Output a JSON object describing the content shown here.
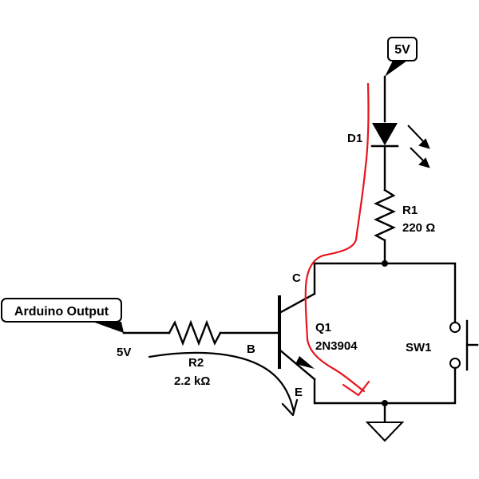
{
  "supply_flag": {
    "label": "5V"
  },
  "input_flag": {
    "label": "Arduino Output"
  },
  "input_voltage": "5V",
  "led": {
    "ref": "D1"
  },
  "resistor_r1": {
    "ref": "R1",
    "value": "220 Ω"
  },
  "resistor_r2": {
    "ref": "R2",
    "value": "2.2 kΩ"
  },
  "transistor": {
    "ref": "Q1",
    "part": "2N3904",
    "pin_c": "C",
    "pin_b": "B",
    "pin_e": "E"
  },
  "switch": {
    "ref": "SW1"
  },
  "colors": {
    "wire": "#000000",
    "annotation_red": "#e8141b",
    "annotation_black": "#000000"
  },
  "icons": [
    "led-icon",
    "resistor-icon",
    "npn-transistor-icon",
    "pushbutton-switch-icon",
    "ground-icon",
    "net-flag-icon"
  ]
}
